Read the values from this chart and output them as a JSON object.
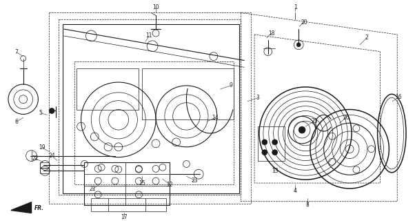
{
  "bg_color": "#ffffff",
  "line_color": "#1a1a1a",
  "label_color": "#222222",
  "fig_width": 6.02,
  "fig_height": 3.2,
  "dpi": 100,
  "lw_thin": 0.5,
  "lw_med": 0.8,
  "lw_thick": 1.1,
  "fs_label": 5.5
}
